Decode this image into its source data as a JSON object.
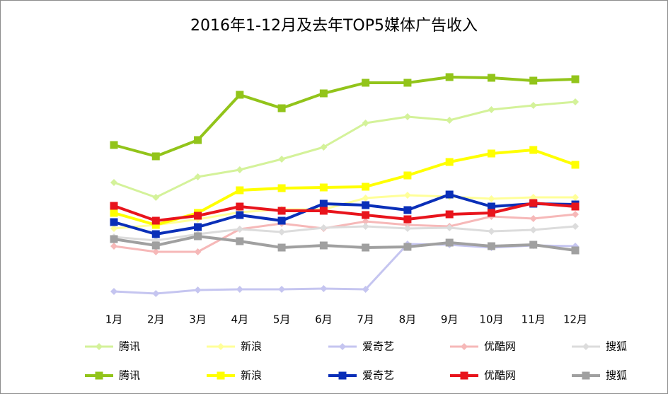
{
  "chart_data": {
    "type": "line",
    "title": "2016年1-12月及去年TOP5媒体广告收入",
    "categories": [
      "1月",
      "2月",
      "3月",
      "4月",
      "5月",
      "6月",
      "7月",
      "8月",
      "9月",
      "10月",
      "11月",
      "12月"
    ],
    "ylim": [
      0,
      340
    ],
    "series": [
      {
        "name": "腾讯",
        "color": "#d4f29a",
        "marker": "diamond",
        "values": [
          182,
          161,
          190,
          200,
          215,
          232,
          266,
          275,
          270,
          285,
          291,
          296
        ]
      },
      {
        "name": "新浪",
        "color": "#ffff99",
        "marker": "diamond",
        "values": [
          117,
          122,
          130,
          140,
          144,
          144,
          160,
          164,
          162,
          159,
          161,
          161
        ]
      },
      {
        "name": "爱奇艺",
        "color": "#c5c5f0",
        "marker": "diamond",
        "values": [
          28,
          25,
          30,
          31,
          31,
          32,
          31,
          95,
          94,
          90,
          93,
          92
        ]
      },
      {
        "name": "优酷网",
        "color": "#f6b8b8",
        "marker": "diamond",
        "values": [
          92,
          84,
          84,
          116,
          124,
          117,
          127,
          122,
          120,
          134,
          131,
          137
        ]
      },
      {
        "name": "搜狐",
        "color": "#dcdcdc",
        "marker": "diamond",
        "values": [
          105,
          100,
          109,
          116,
          112,
          118,
          120,
          117,
          118,
          113,
          115,
          120
        ]
      },
      {
        "name": "腾讯",
        "color": "#92c41a",
        "marker": "square",
        "values": [
          235,
          219,
          242,
          306,
          287,
          308,
          323,
          323,
          331,
          330,
          326,
          328
        ]
      },
      {
        "name": "新浪",
        "color": "#ffff00",
        "marker": "square",
        "values": [
          139,
          122,
          139,
          171,
          174,
          175,
          176,
          192,
          211,
          223,
          228,
          207
        ]
      },
      {
        "name": "爱奇艺",
        "color": "#0a2fb8",
        "marker": "square",
        "values": [
          126,
          109,
          119,
          136,
          128,
          152,
          150,
          143,
          165,
          148,
          152,
          151
        ]
      },
      {
        "name": "优酷网",
        "color": "#e8141c",
        "marker": "square",
        "values": [
          149,
          128,
          135,
          148,
          142,
          142,
          136,
          130,
          137,
          139,
          153,
          148
        ]
      },
      {
        "name": "搜狐",
        "color": "#a0a0a0",
        "marker": "square",
        "values": [
          102,
          93,
          106,
          99,
          90,
          93,
          90,
          91,
          97,
          92,
          94,
          86
        ]
      }
    ]
  }
}
